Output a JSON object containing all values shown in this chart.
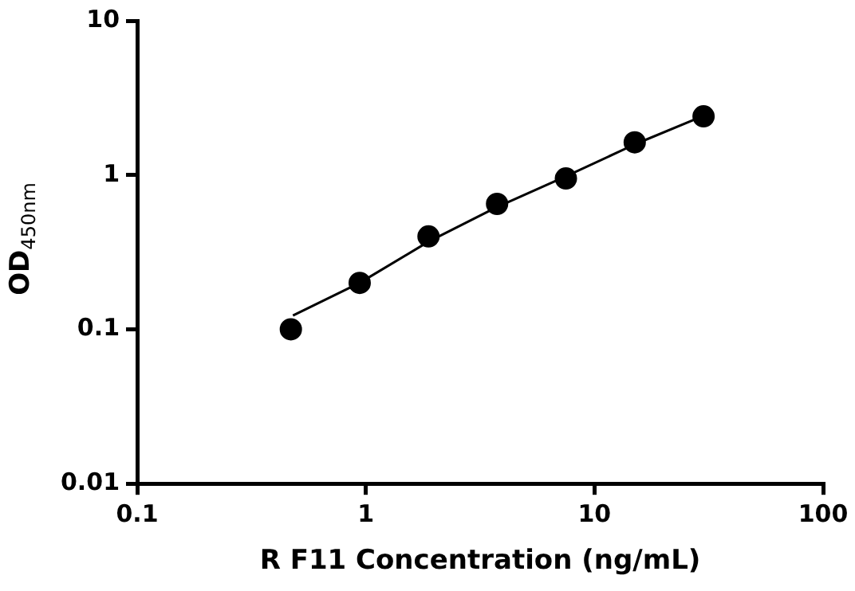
{
  "chart_data": {
    "type": "scatter",
    "xlabel": "R F11 Concentration (ng/mL)",
    "ylabel": "OD$_{450nm}$",
    "log": "xy",
    "xlim": [
      0.1,
      100
    ],
    "xticks": [
      0.1,
      1,
      10,
      100
    ],
    "ylim": [
      0.01,
      10
    ],
    "yticks": [
      0.01,
      0.1,
      1,
      10
    ],
    "grid": false,
    "legend": false,
    "marker": "circle",
    "series": [
      {
        "type": "line",
        "color": "#000000",
        "marker": "none",
        "x": [
          0.48,
          0.94,
          1.88,
          3.75,
          7.5,
          15,
          29
        ],
        "values": [
          0.123,
          0.2,
          0.37,
          0.62,
          0.98,
          1.58,
          2.37
        ]
      },
      {
        "color": "#000000",
        "x": [
          0.47,
          0.94,
          1.88,
          3.75,
          7.5,
          15,
          30
        ],
        "values": [
          0.1,
          0.2,
          0.4,
          0.65,
          0.95,
          1.63,
          2.4
        ]
      }
    ]
  }
}
